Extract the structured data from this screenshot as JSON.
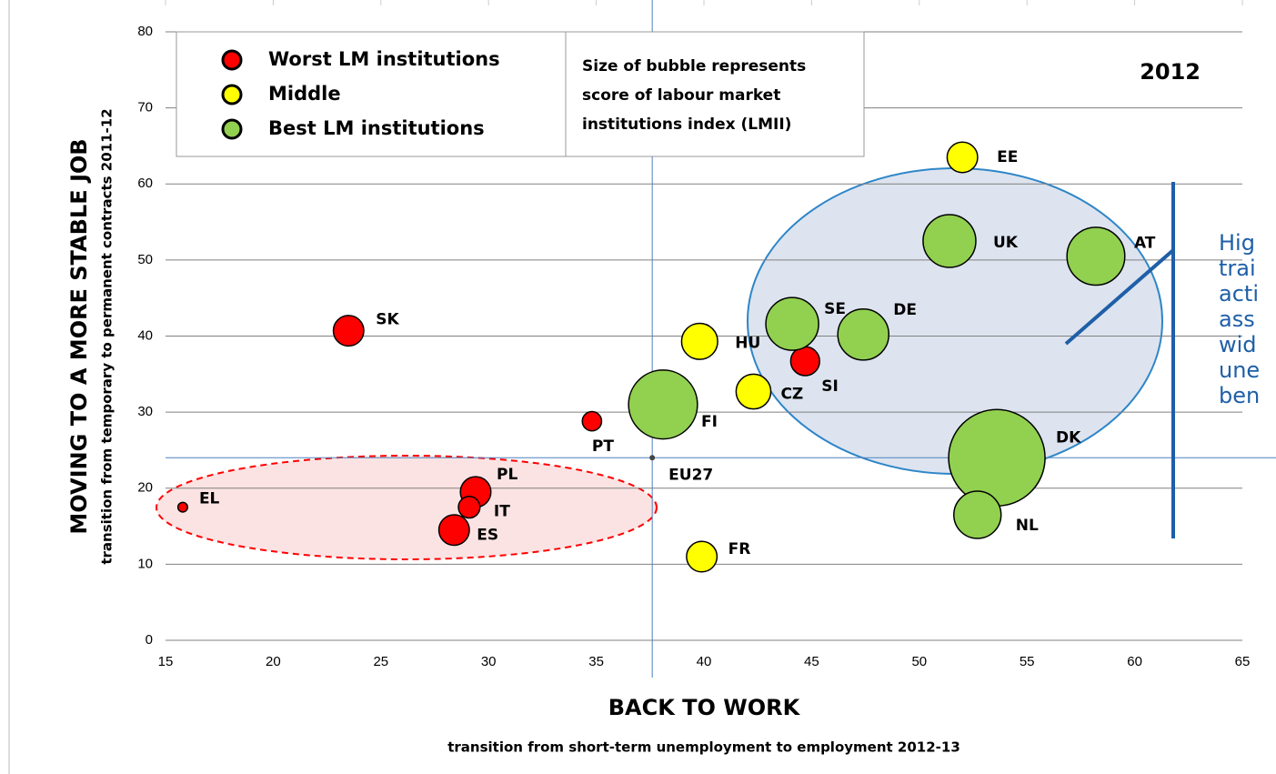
{
  "chart_data": {
    "type": "bubble",
    "y_title": "MOVING TO A MORE STABLE JOB",
    "y_subtitle": "transition from temporary to permanent contracts 2011-12",
    "x_title": "BACK TO WORK",
    "x_subtitle": "transition from short-term unemployment to employment 2012-13",
    "year": "2012",
    "size_note": [
      "Size of bubble represents",
      "score of labour market",
      "institutions index (LMII)"
    ],
    "side_note": [
      "Hig",
      "trai",
      "acti",
      "ass",
      "wid",
      "une",
      "ben"
    ],
    "xlim": [
      15,
      65
    ],
    "xticks": [
      15,
      20,
      25,
      30,
      35,
      40,
      45,
      50,
      55,
      60,
      65
    ],
    "ylim": [
      0,
      80
    ],
    "yticks": [
      0,
      10,
      20,
      30,
      40,
      50,
      60,
      70,
      80
    ],
    "grid": true,
    "series": [
      {
        "name": "Worst LM institutions",
        "color": "#ff0000",
        "labels": [
          "EL",
          "SK",
          "PT",
          "PL",
          "IT",
          "ES",
          "SI"
        ],
        "x": [
          15.8,
          23.5,
          34.8,
          29.4,
          29.1,
          28.4,
          44.7
        ],
        "values": [
          17.5,
          40.7,
          28.8,
          19.5,
          17.5,
          14.5,
          36.7
        ],
        "sizes": [
          1,
          10,
          4,
          10,
          5,
          10,
          9
        ]
      },
      {
        "name": "Middle",
        "color": "#ffff00",
        "labels": [
          "EE",
          "HU",
          "CZ",
          "FR"
        ],
        "x": [
          52.0,
          39.8,
          42.3,
          39.9
        ],
        "values": [
          63.5,
          39.3,
          32.7,
          11.0
        ],
        "sizes": [
          10,
          14,
          13,
          10
        ]
      },
      {
        "name": "Best LM institutions",
        "color": "#92d050",
        "labels": [
          "FI",
          "SE",
          "DE",
          "UK",
          "AT",
          "DK",
          "NL"
        ],
        "x": [
          38.1,
          44.1,
          47.4,
          51.4,
          58.2,
          53.6,
          52.7
        ],
        "values": [
          31.0,
          41.6,
          40.2,
          52.5,
          50.5,
          24.0,
          16.5
        ],
        "sizes": [
          51,
          30,
          28,
          30,
          36,
          100,
          24
        ]
      }
    ],
    "reference": {
      "label": "EU27",
      "x": 37.6,
      "y": 24.0
    }
  }
}
